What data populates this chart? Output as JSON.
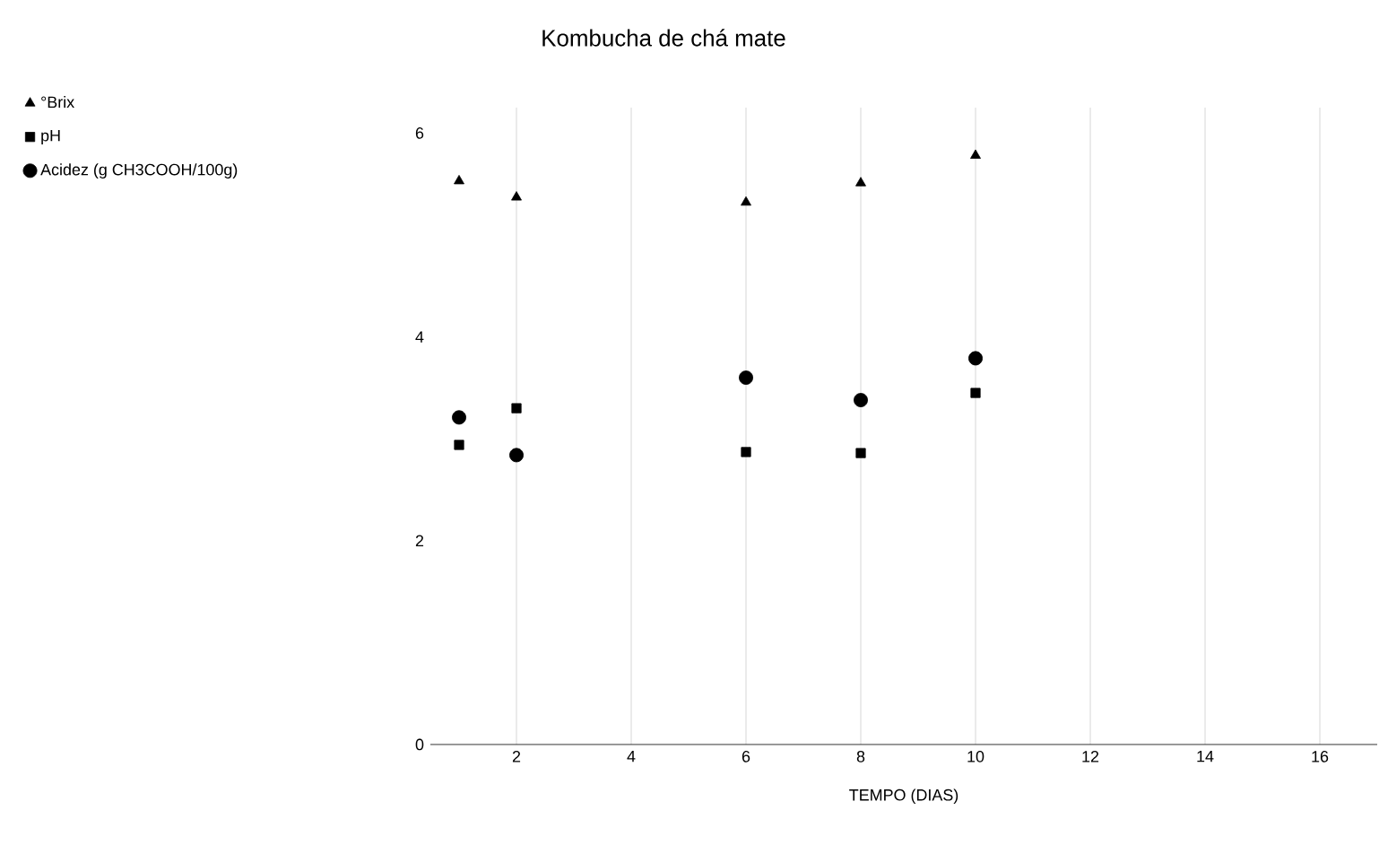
{
  "chart_data": {
    "type": "scatter",
    "title": "Kombucha de chá mate",
    "xlabel": "TEMPO (DIAS)",
    "x": [
      1,
      2,
      6,
      8,
      10
    ],
    "series": [
      {
        "name": "°Brix",
        "color": "#000000",
        "marker": "triangle",
        "values": [
          5.53,
          5.37,
          5.32,
          5.51,
          5.78
        ]
      },
      {
        "name": "pH",
        "color": "#000000",
        "marker": "square",
        "values": [
          2.94,
          3.3,
          2.87,
          2.86,
          3.45
        ]
      },
      {
        "name": "Acidez (g CH3COOH/100g)",
        "color": "#000000",
        "marker": "circle",
        "values": [
          3.21,
          2.84,
          3.6,
          3.38,
          3.79
        ]
      }
    ],
    "xlim": [
      0.5,
      17
    ],
    "ylim": [
      0,
      6.25
    ],
    "xticks": [
      2,
      4,
      6,
      8,
      10,
      12,
      14,
      16
    ],
    "yticks": [
      0,
      2,
      4,
      6
    ],
    "grid": "x",
    "legend": "top left"
  }
}
